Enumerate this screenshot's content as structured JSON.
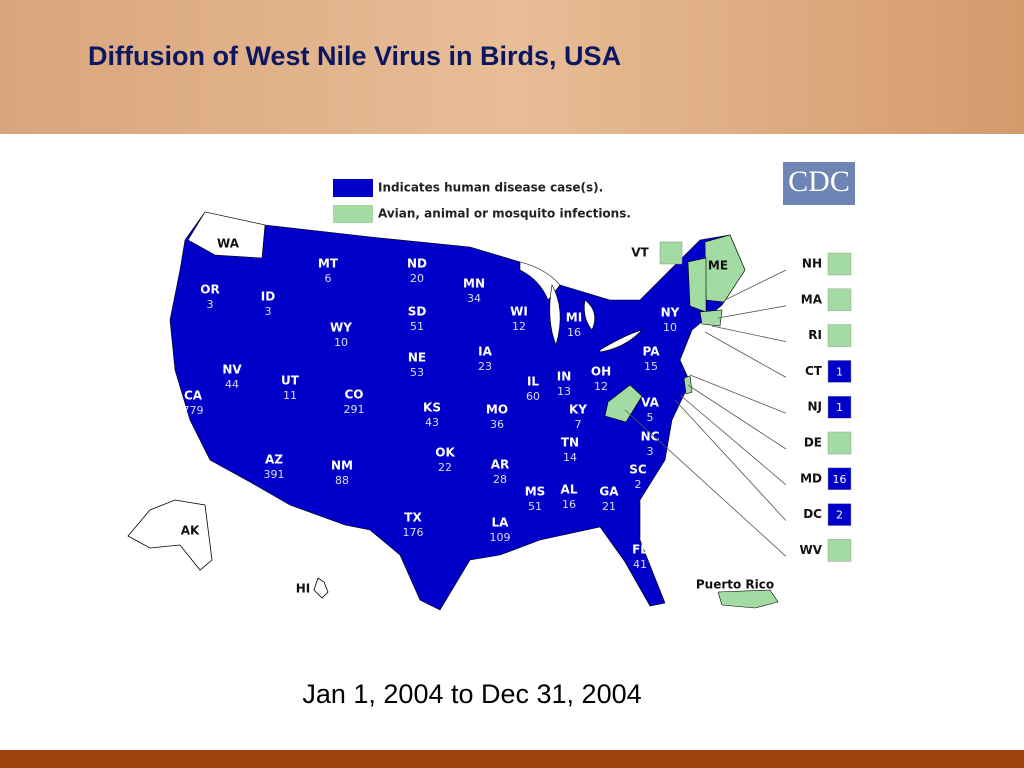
{
  "header": {
    "title": "Diffusion of West Nile Virus in Birds, USA"
  },
  "logo": "CDC",
  "legend": [
    {
      "label": "Indicates human disease case(s).",
      "color": "#0000c8"
    },
    {
      "label": "Avian, animal or mosquito infections.",
      "color": "#a3dca3"
    }
  ],
  "states": [
    {
      "abbr": "WA",
      "color": "#ffffff"
    },
    {
      "abbr": "OR",
      "cases": 3,
      "color": "#0000c8"
    },
    {
      "abbr": "ID",
      "cases": 3,
      "color": "#0000c8"
    },
    {
      "abbr": "MT",
      "cases": 6,
      "color": "#0000c8"
    },
    {
      "abbr": "ND",
      "cases": 20,
      "color": "#0000c8"
    },
    {
      "abbr": "SD",
      "cases": 51,
      "color": "#0000c8"
    },
    {
      "abbr": "WY",
      "cases": 10,
      "color": "#0000c8"
    },
    {
      "abbr": "NE",
      "cases": 53,
      "color": "#0000c8"
    },
    {
      "abbr": "MN",
      "cases": 34,
      "color": "#0000c8"
    },
    {
      "abbr": "WI",
      "cases": 12,
      "color": "#0000c8"
    },
    {
      "abbr": "MI",
      "cases": 16,
      "color": "#0000c8"
    },
    {
      "abbr": "IA",
      "cases": 23,
      "color": "#0000c8"
    },
    {
      "abbr": "NV",
      "cases": 44,
      "color": "#0000c8"
    },
    {
      "abbr": "UT",
      "cases": 11,
      "color": "#0000c8"
    },
    {
      "abbr": "CO",
      "cases": 291,
      "color": "#0000c8"
    },
    {
      "abbr": "CA",
      "cases": 779,
      "color": "#0000c8"
    },
    {
      "abbr": "KS",
      "cases": 43,
      "color": "#0000c8"
    },
    {
      "abbr": "MO",
      "cases": 36,
      "color": "#0000c8"
    },
    {
      "abbr": "IL",
      "cases": 60,
      "color": "#0000c8"
    },
    {
      "abbr": "IN",
      "cases": 13,
      "color": "#0000c8"
    },
    {
      "abbr": "OH",
      "cases": 12,
      "color": "#0000c8"
    },
    {
      "abbr": "PA",
      "cases": 15,
      "color": "#0000c8"
    },
    {
      "abbr": "NY",
      "cases": 10,
      "color": "#0000c8"
    },
    {
      "abbr": "KY",
      "cases": 7,
      "color": "#0000c8"
    },
    {
      "abbr": "VA",
      "cases": 5,
      "color": "#0000c8"
    },
    {
      "abbr": "NC",
      "cases": 3,
      "color": "#0000c8"
    },
    {
      "abbr": "TN",
      "cases": 14,
      "color": "#0000c8"
    },
    {
      "abbr": "SC",
      "cases": 2,
      "color": "#0000c8"
    },
    {
      "abbr": "AZ",
      "cases": 391,
      "color": "#0000c8"
    },
    {
      "abbr": "NM",
      "cases": 88,
      "color": "#0000c8"
    },
    {
      "abbr": "OK",
      "cases": 22,
      "color": "#0000c8"
    },
    {
      "abbr": "AR",
      "cases": 28,
      "color": "#0000c8"
    },
    {
      "abbr": "MS",
      "cases": 51,
      "color": "#0000c8"
    },
    {
      "abbr": "AL",
      "cases": 16,
      "color": "#0000c8"
    },
    {
      "abbr": "GA",
      "cases": 21,
      "color": "#0000c8"
    },
    {
      "abbr": "TX",
      "cases": 176,
      "color": "#0000c8"
    },
    {
      "abbr": "LA",
      "cases": 109,
      "color": "#0000c8"
    },
    {
      "abbr": "FL",
      "cases": 41,
      "color": "#0000c8"
    },
    {
      "abbr": "AK",
      "color": "#ffffff"
    },
    {
      "abbr": "HI",
      "color": "#ffffff"
    },
    {
      "abbr": "ME",
      "color": "#a3dca3"
    },
    {
      "abbr": "VT",
      "color": "#a3dca3"
    }
  ],
  "callouts": [
    {
      "abbr": "NH",
      "color": "#a3dca3"
    },
    {
      "abbr": "MA",
      "color": "#a3dca3"
    },
    {
      "abbr": "RI",
      "color": "#a3dca3"
    },
    {
      "abbr": "CT",
      "cases": 1,
      "color": "#0000c8"
    },
    {
      "abbr": "NJ",
      "cases": 1,
      "color": "#0000c8"
    },
    {
      "abbr": "DE",
      "color": "#a3dca3"
    },
    {
      "abbr": "MD",
      "cases": 16,
      "color": "#0000c8"
    },
    {
      "abbr": "DC",
      "cases": 2,
      "color": "#0000c8"
    },
    {
      "abbr": "WV",
      "color": "#a3dca3"
    }
  ],
  "territory": {
    "label": "Puerto Rico",
    "color": "#a3dca3"
  },
  "caption": "Jan 1, 2004 to Dec 31, 2004"
}
